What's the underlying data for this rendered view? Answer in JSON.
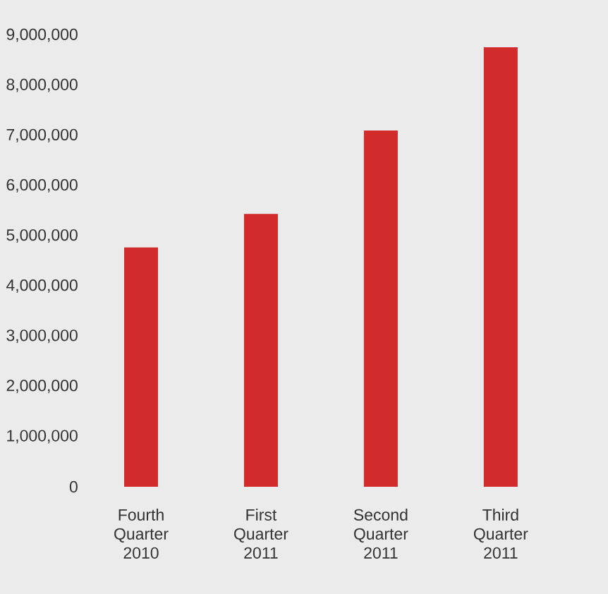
{
  "chart_data": {
    "type": "bar",
    "categories": [
      "Fourth Quarter 2010",
      "First Quarter 2011",
      "Second Quarter 2011",
      "Third Quarter 2011"
    ],
    "values": [
      4770000,
      5440000,
      7100000,
      8760000
    ],
    "color": "#d12b2b",
    "ylim": [
      0,
      9000000
    ],
    "yticks": [
      {
        "value": 0,
        "label": "0"
      },
      {
        "value": 1000000,
        "label": "1,000,000"
      },
      {
        "value": 2000000,
        "label": "2,000,000"
      },
      {
        "value": 3000000,
        "label": "3,000,000"
      },
      {
        "value": 4000000,
        "label": "4,000,000"
      },
      {
        "value": 5000000,
        "label": "5,000,000"
      },
      {
        "value": 6000000,
        "label": "6,000,000"
      },
      {
        "value": 7000000,
        "label": "7,000,000"
      },
      {
        "value": 8000000,
        "label": "8,000,000"
      },
      {
        "value": 9000000,
        "label": "9,000,000"
      }
    ]
  }
}
